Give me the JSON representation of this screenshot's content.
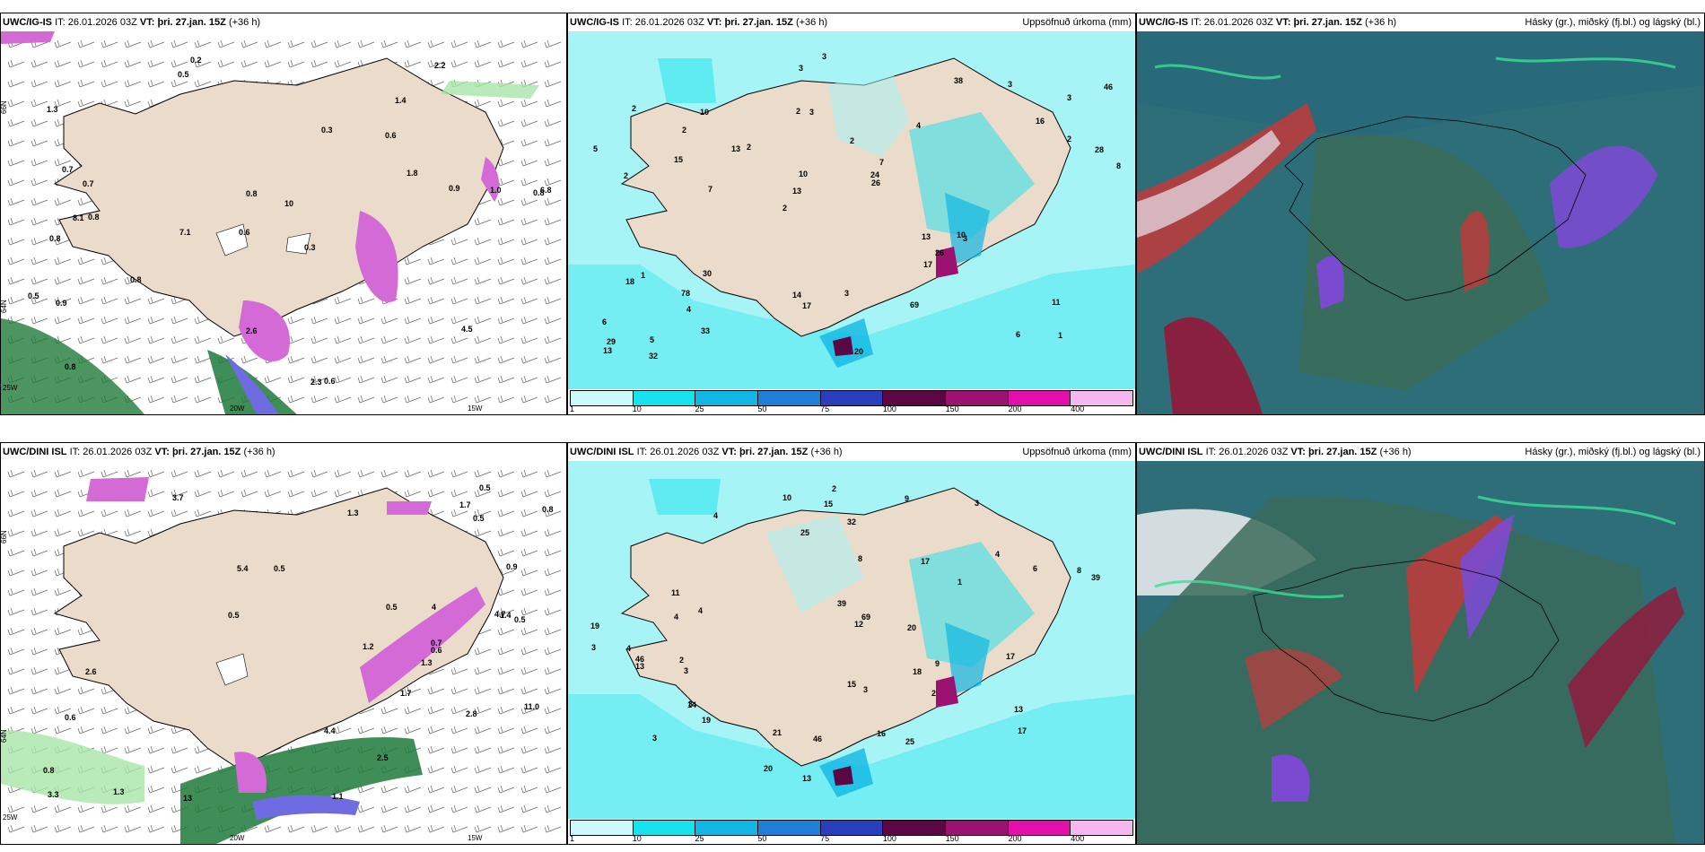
{
  "rows": [
    {
      "model": "UWC/IG-IS",
      "panels": [
        {
          "model": "UWC/IG-IS",
          "it_label": "IT:",
          "it": "26.01.2026 03Z",
          "vt_label": "VT:",
          "vt": "þri. 27.jan. 15Z",
          "lead": "(+36 h)",
          "title_right": ""
        },
        {
          "model": "UWC/IG-IS",
          "it_label": "IT:",
          "it": "26.01.2026 03Z",
          "vt_label": "VT:",
          "vt": "þri. 27.jan. 15Z",
          "lead": "(+36 h)",
          "title_right": "Uppsöfnuð úrkoma (mm)"
        },
        {
          "model": "UWC/IG-IS",
          "it_label": "IT:",
          "it": "26.01.2026 03Z",
          "vt_label": "VT:",
          "vt": "þri. 27.jan. 15Z",
          "lead": "(+36 h)",
          "title_right": "Hásky (gr.), miðský (fj.bl.) og lágský (bl.)"
        }
      ],
      "precip_labels": [
        "1",
        "2",
        "3",
        "2",
        "4",
        "5",
        "2",
        "2",
        "1",
        "2",
        "6",
        "4",
        "3",
        "7",
        "3",
        "2",
        "3",
        "8",
        "13",
        "2",
        "13",
        "14",
        "10",
        "10",
        "38",
        "30",
        "6",
        "11",
        "10",
        "20",
        "13",
        "15",
        "17",
        "33",
        "28",
        "24",
        "29",
        "17",
        "26",
        "18",
        "16",
        "46",
        "26",
        "69",
        "78",
        "32",
        "13",
        "3",
        "3",
        "3",
        "7",
        "5",
        "2"
      ],
      "phase_labels": [
        "0.2",
        "1.4",
        "0.8",
        "0.6",
        "0.3",
        "0.8",
        "1.3",
        "0.6",
        "0.8",
        "0.3",
        "10",
        "0.8",
        "0.5",
        "7.1",
        "2.3",
        "0.6",
        "2.6",
        "2.2",
        "1.8",
        "0.8",
        "0.7",
        "8.1",
        "6.8",
        "1.0",
        "0.5",
        "0.7",
        "0.8",
        "0.9",
        "4.5",
        "0.9"
      ]
    },
    {
      "model": "UWC/DINI ISL",
      "panels": [
        {
          "model": "UWC/DINI ISL",
          "it_label": "IT:",
          "it": "26.01.2026 03Z",
          "vt_label": "VT:",
          "vt": "þri. 27.jan. 15Z",
          "lead": "(+36 h)",
          "title_right": ""
        },
        {
          "model": "UWC/DINI ISL",
          "it_label": "IT:",
          "it": "26.01.2026 03Z",
          "vt_label": "VT:",
          "vt": "þri. 27.jan. 15Z",
          "lead": "(+36 h)",
          "title_right": "Uppsöfnuð úrkoma (mm)"
        },
        {
          "model": "UWC/DINI ISL",
          "it_label": "IT:",
          "it": "26.01.2026 03Z",
          "vt_label": "VT:",
          "vt": "þri. 27.jan. 15Z",
          "lead": "(+36 h)",
          "title_right": "Hásky (gr.), miðský (fj.bl.) og lágský (bl.)"
        }
      ],
      "precip_labels": [
        "3",
        "3",
        "4",
        "4",
        "3",
        "4",
        "3",
        "3",
        "6",
        "1",
        "4",
        "2",
        "2",
        "12",
        "13",
        "10",
        "17",
        "19",
        "14",
        "20",
        "25",
        "15",
        "25",
        "69",
        "39",
        "21",
        "46",
        "9",
        "8",
        "9",
        "11",
        "19",
        "16",
        "15",
        "13",
        "13",
        "8",
        "20",
        "17",
        "17",
        "39",
        "32",
        "46",
        "2",
        "3",
        "4",
        "18"
      ],
      "phase_labels": [
        "0.5",
        "4",
        "5.4",
        "1.3",
        "1.7",
        "3.3",
        "0.5",
        "0.8",
        "1.4",
        "1.3",
        "4.4",
        "13",
        "0.5",
        "0.5",
        "1.1",
        "0.7",
        "0.5",
        "0.6",
        "2.5",
        "3.7",
        "2.6",
        "4.7",
        "11.0",
        "0.8",
        "0.6",
        "1.7",
        "1.3",
        "1.2",
        "0.9",
        "0.5",
        "2.8"
      ]
    }
  ],
  "axis": {
    "lat_66": "66N",
    "lat_64": "64N",
    "lon_20": "20W",
    "lon_15": "15W",
    "lon_25": "25W"
  },
  "colorbar": {
    "ticks": [
      "1",
      "10",
      "25",
      "50",
      "75",
      "100",
      "150",
      "200",
      "400"
    ],
    "colors": [
      "#ccf9fb",
      "#16e3ee",
      "#11b6e3",
      "#1f7fd8",
      "#2a3fbb",
      "#5a0743",
      "#9b1271",
      "#e20faa",
      "#f4b8ef"
    ]
  },
  "colors": {
    "land": "#eadbca",
    "sea_precip": "#a6f4f6",
    "coast": "#000000",
    "cloud_low": "#2e6e78",
    "cloud_mid": "#3a6b5a",
    "cloud_high": "#7a4bd1",
    "red": "#c23a3a",
    "green_precip": "#1f7a3a",
    "purple_snow": "#d36ad6"
  }
}
